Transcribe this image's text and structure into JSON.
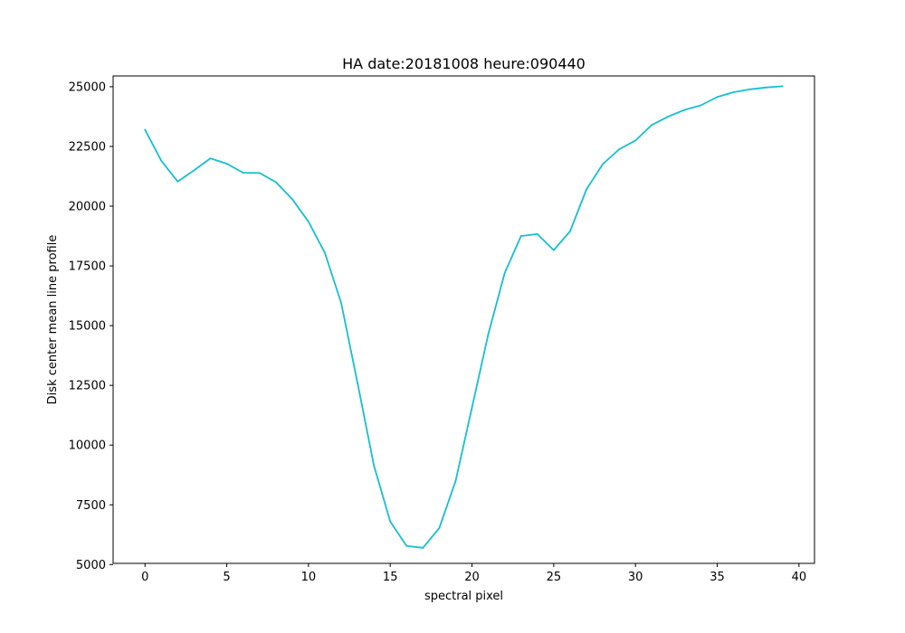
{
  "chart_data": {
    "type": "line",
    "title": "HA date:20181008 heure:090440",
    "xlabel": "spectral pixel",
    "ylabel": "Disk center mean line profile",
    "xlim": [
      -1.95,
      40.95
    ],
    "ylim": [
      5050,
      25450
    ],
    "grid": false,
    "legend": "none",
    "xticks": [
      0,
      5,
      10,
      15,
      20,
      25,
      30,
      35,
      40
    ],
    "yticks": [
      5000,
      7500,
      10000,
      12500,
      15000,
      17500,
      20000,
      22500,
      25000
    ],
    "series": [
      {
        "color": "#17becf",
        "x": [
          0,
          1,
          2,
          3,
          4,
          5,
          6,
          7,
          8,
          9,
          10,
          11,
          12,
          13,
          14,
          15,
          16,
          17,
          18,
          19,
          20,
          21,
          22,
          23,
          24,
          25,
          26,
          27,
          28,
          29,
          30,
          31,
          32,
          33,
          34,
          35,
          36,
          37,
          38,
          39
        ],
        "y": [
          23200,
          21900,
          21030,
          21500,
          22000,
          21780,
          21400,
          21390,
          21010,
          20300,
          19350,
          18050,
          15950,
          12600,
          9150,
          6800,
          5780,
          5700,
          6530,
          8500,
          11570,
          14650,
          17200,
          18750,
          18830,
          18160,
          18950,
          20700,
          21760,
          22380,
          22750,
          23400,
          23750,
          24030,
          24220,
          24570,
          24770,
          24890,
          24970,
          25020
        ]
      }
    ]
  }
}
